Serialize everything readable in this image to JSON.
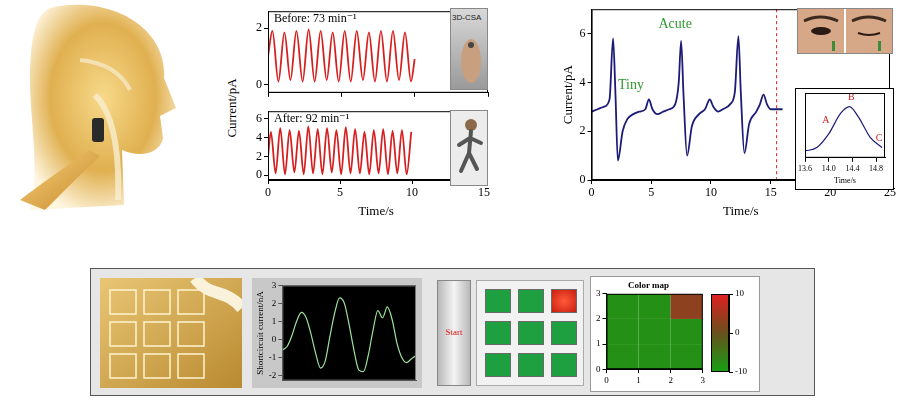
{
  "chart_data": [
    {
      "type": "line",
      "annotation": "Before: 73 min⁻¹",
      "photo_label": "3D-CSA",
      "color": "#d62020",
      "x": [
        0,
        0.3,
        0.71,
        1.12,
        1.53,
        1.94,
        2.36,
        2.77,
        3.18,
        3.59,
        4.0,
        4.41,
        4.82,
        5.23,
        5.64,
        6.05,
        6.47,
        6.88,
        7.29,
        7.7,
        8.11,
        8.52,
        8.93,
        9.34,
        9.75,
        10.0
      ],
      "values": [
        1.0,
        1.9,
        0.1,
        1.85,
        0.15,
        1.9,
        0.1,
        1.95,
        0.1,
        1.9,
        0.15,
        1.85,
        0.1,
        1.9,
        0.1,
        1.9,
        0.15,
        1.85,
        0.1,
        1.9,
        0.1,
        1.9,
        0.15,
        1.85,
        0.1,
        0.9
      ],
      "xlim": [
        0,
        15
      ],
      "xticks": [
        0,
        5,
        10,
        15
      ],
      "ylim": [
        -0.3,
        2.6
      ],
      "yticks": [
        0,
        2
      ],
      "tick_labels": "y",
      "grid": false
    },
    {
      "type": "line",
      "annotation": "After: 92 min⁻¹",
      "xlabel": "Time/s",
      "ylabel": "Current/pA",
      "color": "#d62020",
      "x": [
        0,
        0.2,
        0.53,
        0.85,
        1.18,
        1.5,
        1.83,
        2.15,
        2.48,
        2.8,
        3.13,
        3.45,
        3.78,
        4.1,
        4.43,
        4.75,
        5.08,
        5.4,
        5.73,
        6.05,
        6.38,
        6.7,
        7.03,
        7.35,
        7.68,
        8.0,
        8.33,
        8.65,
        8.98,
        9.3,
        9.63,
        9.95
      ],
      "values": [
        2.0,
        4.6,
        0.2,
        5.0,
        0.1,
        4.8,
        0.3,
        4.7,
        0.1,
        5.2,
        0.2,
        4.9,
        0.1,
        5.0,
        0.3,
        4.8,
        0.1,
        5.1,
        0.2,
        4.9,
        0.2,
        4.6,
        0.1,
        4.8,
        0.2,
        4.9,
        0.1,
        4.7,
        0.2,
        4.8,
        0.1,
        4.6
      ],
      "xlim": [
        0,
        15
      ],
      "xticks": [
        0,
        5,
        10,
        15
      ],
      "ylim": [
        -0.5,
        6.8
      ],
      "yticks": [
        0,
        2,
        4,
        6
      ],
      "grid": false
    },
    {
      "type": "line",
      "xlabel": "Time/s",
      "ylabel": "Current/pA",
      "color": "#1c1c78",
      "x": [
        0,
        0.5,
        1.0,
        1.5,
        1.8,
        2.0,
        2.2,
        2.6,
        3.0,
        3.5,
        4.0,
        4.5,
        4.8,
        5.1,
        5.5,
        6.0,
        6.5,
        7.0,
        7.3,
        7.5,
        7.7,
        8.0,
        8.4,
        9.0,
        9.5,
        9.9,
        10.2,
        10.6,
        11.0,
        11.6,
        12.0,
        12.3,
        12.5,
        12.8,
        13.2,
        13.8,
        14.1,
        14.4,
        14.7,
        15.0,
        15.5,
        16.0
      ],
      "values": [
        2.8,
        2.9,
        3.0,
        3.3,
        5.8,
        3.5,
        0.8,
        2.0,
        2.5,
        2.7,
        2.8,
        2.9,
        3.3,
        2.9,
        2.7,
        2.8,
        2.9,
        3.1,
        4.0,
        5.7,
        3.5,
        1.0,
        2.2,
        2.7,
        2.9,
        3.3,
        3.0,
        2.8,
        2.9,
        3.1,
        3.6,
        5.9,
        3.6,
        1.1,
        2.3,
        2.8,
        3.1,
        3.5,
        3.1,
        2.9,
        2.9,
        2.9
      ],
      "annotations": [
        {
          "text": "Acute",
          "x": 7.0,
          "y": 6.4
        },
        {
          "text": "Tiny",
          "x": 3.3,
          "y": 3.9
        }
      ],
      "vline": 15.5,
      "xlim": [
        0,
        25
      ],
      "xticks": [
        0,
        5,
        10,
        15,
        20,
        25
      ],
      "ylim": [
        0,
        7
      ],
      "yticks": [
        0,
        2,
        4,
        6
      ],
      "grid": false
    },
    {
      "type": "line",
      "xlabel": "Time/s",
      "color": "#1c1c78",
      "x": [
        13.6,
        13.8,
        14.0,
        14.2,
        14.35,
        14.5,
        14.7,
        14.9
      ],
      "values": [
        2.9,
        2.95,
        3.15,
        3.45,
        3.55,
        3.4,
        3.1,
        2.95
      ],
      "annotations": [
        {
          "text": "A",
          "x": 13.95,
          "y": 3.35
        },
        {
          "text": "B",
          "x": 14.38,
          "y": 3.68
        },
        {
          "text": "C",
          "x": 14.85,
          "y": 3.08
        }
      ],
      "xlim": [
        13.6,
        14.95
      ],
      "xticks": [
        13.6,
        {
          "value": 14,
          "label": "14.0"
        },
        14.4,
        14.8
      ],
      "ylim": [
        2.8,
        3.75
      ],
      "tick_labels": "x",
      "grid": false
    },
    {
      "type": "line",
      "ylabel": "Shortcircuit current/nA",
      "color": "#9be39b",
      "x": [
        0,
        1,
        2,
        3,
        4,
        5,
        6,
        7,
        8,
        9,
        10,
        11,
        12,
        13,
        14,
        15,
        16,
        17,
        18,
        19,
        20,
        21,
        22,
        23,
        24,
        25,
        26,
        27,
        28
      ],
      "values": [
        -0.6,
        -0.4,
        0.2,
        1.0,
        1.5,
        1.2,
        0.3,
        -0.8,
        -1.6,
        -1.2,
        0.2,
        1.5,
        2.3,
        2.0,
        0.8,
        -0.6,
        -1.7,
        -1.8,
        -0.9,
        0.5,
        1.6,
        1.2,
        1.8,
        1.1,
        -0.2,
        -1.0,
        -1.3,
        -1.1,
        -0.9
      ],
      "xlim": [
        0,
        28
      ],
      "ylim": [
        -2.3,
        3
      ],
      "yticks": [
        -2,
        -1,
        0,
        1,
        2,
        3
      ],
      "tick_labels": "y",
      "grid": false
    },
    {
      "type": "heatmap",
      "title": "Color map",
      "cells": [
        [
          -8,
          -8,
          -8
        ],
        [
          -8,
          -8,
          -8
        ],
        [
          -8,
          -8,
          3
        ]
      ],
      "xlim": [
        0,
        3
      ],
      "xticks": [
        0,
        1,
        2,
        3
      ],
      "ylim": [
        0,
        3
      ],
      "yticks": [
        0,
        1,
        2,
        3
      ],
      "colorbar_lim": [
        -10,
        10
      ],
      "colorbar_ticks": [
        -10,
        0,
        10
      ],
      "grid": false
    }
  ],
  "panel": {
    "button": "Start",
    "pads": [
      [
        0,
        0,
        1
      ],
      [
        0,
        0,
        0
      ],
      [
        0,
        0,
        0
      ]
    ]
  }
}
